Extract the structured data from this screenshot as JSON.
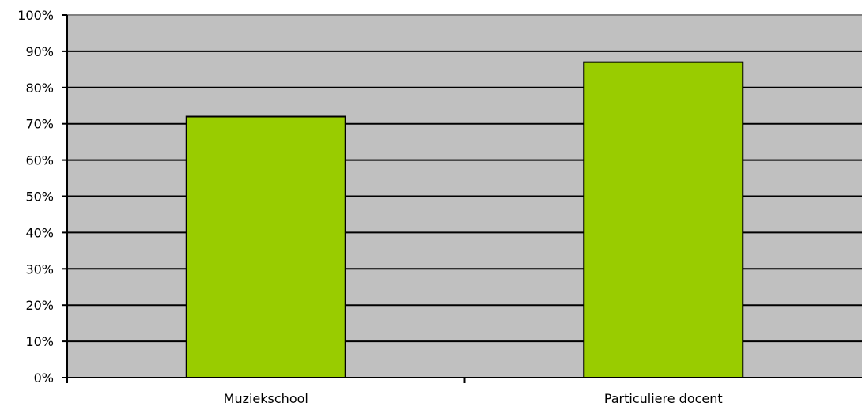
{
  "chart_data": {
    "type": "bar",
    "categories": [
      "Muziekschool",
      "Particuliere docent"
    ],
    "values": [
      72,
      87
    ],
    "ylim": [
      0,
      100
    ],
    "yticks": [
      "0%",
      "10%",
      "20%",
      "30%",
      "40%",
      "50%",
      "60%",
      "70%",
      "80%",
      "90%",
      "100%"
    ],
    "grid": true,
    "legend": "none",
    "xlabel": "",
    "ylabel": "",
    "title": "",
    "colors": {
      "bar": "#99cc00",
      "plot_background": "#c0c0c0",
      "gridline": "#000000"
    }
  }
}
